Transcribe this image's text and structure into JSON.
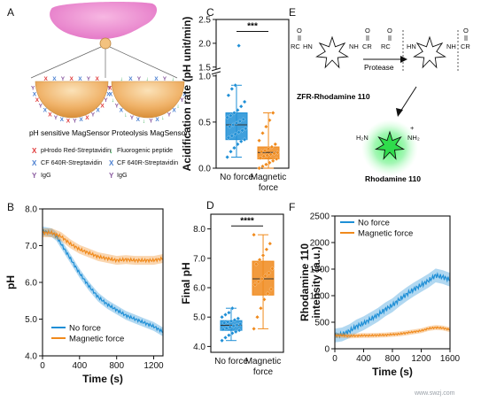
{
  "panels": {
    "A": {
      "letter": "A",
      "left_title": "pH sensitive MagSensor",
      "right_title": "Proteolysis MagSensor",
      "legend_left": [
        {
          "symbol": "X",
          "color": "#e03a3a",
          "text": "pHrodo Red-Streptavidin"
        },
        {
          "symbol": "X",
          "color": "#4a7fd0",
          "text": "CF 640R-Streptavidin"
        },
        {
          "symbol": "Y",
          "color": "#8a5aa0",
          "text": "IgG"
        }
      ],
      "legend_right": [
        {
          "symbol": "↓",
          "color": "#2aa84a",
          "text": "Fluorogenic peptide"
        },
        {
          "symbol": "X",
          "color": "#4a7fd0",
          "text": "CF 640R-Streptavidin"
        },
        {
          "symbol": "Y",
          "color": "#8a5aa0",
          "text": "IgG"
        }
      ]
    },
    "E": {
      "letter": "E",
      "left_label": "ZFR-Rhodamine 110",
      "arrow_label": "Protease",
      "product_label": "Rhodamine 110",
      "left_groups": {
        "rc": "RC",
        "hn": "HN",
        "nh": "NH",
        "cr": "CR",
        "o": "O"
      },
      "right_groups": {
        "rc": "RC",
        "hn": "HN",
        "nh": "NH",
        "cr": "CR",
        "o": "O"
      },
      "product_groups": {
        "h2n": "H₂N",
        "nh2": "NH₂",
        "plus": "+"
      }
    },
    "watermark": "www.swzj.com"
  },
  "chart_data": [
    {
      "id": "C",
      "letter": "C",
      "type": "box",
      "ylabel": "Acidification rate (pH unit/min)",
      "categories": [
        "No force",
        "Magnetic force"
      ],
      "axis_break": true,
      "yticks": [
        "0.0",
        "0.5",
        "1.0",
        "1.5",
        "2.0",
        "2.5"
      ],
      "ylim": [
        0,
        2.5
      ],
      "significance": "***",
      "colors": [
        "#1f8fd6",
        "#f08a1c"
      ],
      "boxes": [
        {
          "name": "No force",
          "q1": 0.31,
          "median": 0.47,
          "q3": 0.6,
          "mean": 0.44,
          "whisker_low": 0.12,
          "whisker_high": 0.9,
          "points": [
            0.12,
            0.18,
            0.22,
            0.26,
            0.29,
            0.31,
            0.33,
            0.35,
            0.37,
            0.39,
            0.41,
            0.43,
            0.45,
            0.47,
            0.49,
            0.51,
            0.53,
            0.55,
            0.57,
            0.6,
            0.63,
            0.67,
            0.72,
            0.79,
            0.86,
            0.9,
            1.95
          ]
        },
        {
          "name": "Magnetic force",
          "q1": 0.1,
          "median": 0.17,
          "q3": 0.23,
          "mean": 0.16,
          "whisker_low": 0.0,
          "whisker_high": 0.6,
          "points": [
            0.0,
            0.02,
            0.04,
            0.06,
            0.08,
            0.1,
            0.11,
            0.13,
            0.14,
            0.15,
            0.16,
            0.17,
            0.18,
            0.19,
            0.21,
            0.23,
            0.26,
            0.3,
            0.38,
            0.45,
            0.52,
            0.6
          ]
        }
      ]
    },
    {
      "id": "B",
      "letter": "B",
      "type": "line",
      "xlabel": "Time (s)",
      "ylabel": "pH",
      "xlim": [
        0,
        1300
      ],
      "ylim": [
        4.0,
        8.0
      ],
      "xticks": [
        "0",
        "400",
        "800",
        "1200"
      ],
      "yticks": [
        "4.0",
        "5.0",
        "6.0",
        "7.0",
        "8.0"
      ],
      "series": [
        {
          "name": "No force",
          "color": "#1f8fd6",
          "x": [
            0,
            100,
            150,
            200,
            300,
            400,
            500,
            600,
            700,
            800,
            900,
            1000,
            1100,
            1200,
            1300
          ],
          "y": [
            7.4,
            7.35,
            7.25,
            7.05,
            6.65,
            6.25,
            5.9,
            5.6,
            5.4,
            5.25,
            5.1,
            5.0,
            4.9,
            4.8,
            4.65
          ],
          "band": 0.12
        },
        {
          "name": "Magnetic force",
          "color": "#f08a1c",
          "x": [
            0,
            100,
            200,
            300,
            400,
            500,
            600,
            700,
            800,
            900,
            1000,
            1100,
            1200,
            1300
          ],
          "y": [
            7.35,
            7.35,
            7.25,
            7.05,
            6.9,
            6.8,
            6.7,
            6.65,
            6.6,
            6.62,
            6.6,
            6.6,
            6.6,
            6.65
          ],
          "band": 0.12
        }
      ]
    },
    {
      "id": "D",
      "letter": "D",
      "type": "box",
      "ylabel": "Final pH",
      "categories": [
        "No force",
        "Magnetic force"
      ],
      "ylim": [
        3.8,
        8.5
      ],
      "yticks": [
        "4.0",
        "5.0",
        "6.0",
        "7.0",
        "8.0"
      ],
      "significance": "****",
      "colors": [
        "#1f8fd6",
        "#f08a1c"
      ],
      "boxes": [
        {
          "name": "No force",
          "q1": 4.55,
          "median": 4.72,
          "q3": 4.88,
          "mean": 4.72,
          "whisker_low": 4.2,
          "whisker_high": 5.3,
          "points": [
            4.2,
            4.3,
            4.38,
            4.45,
            4.5,
            4.55,
            4.58,
            4.62,
            4.66,
            4.7,
            4.73,
            4.76,
            4.8,
            4.83,
            4.86,
            4.9,
            4.95,
            5.0,
            5.08,
            5.15,
            5.3
          ]
        },
        {
          "name": "Magnetic force",
          "q1": 5.75,
          "median": 6.3,
          "q3": 6.9,
          "mean": 6.3,
          "whisker_low": 4.6,
          "whisker_high": 7.8,
          "points": [
            4.6,
            5.0,
            5.3,
            5.6,
            5.8,
            5.95,
            6.1,
            6.2,
            6.3,
            6.4,
            6.5,
            6.65,
            6.8,
            6.95,
            7.1,
            7.3,
            7.5,
            7.8
          ]
        }
      ]
    },
    {
      "id": "F",
      "letter": "F",
      "type": "line",
      "xlabel": "Time (s)",
      "ylabel": "Rhodamine 110 intensity (a.u.)",
      "xlim": [
        0,
        1600
      ],
      "ylim": [
        0,
        2500
      ],
      "xticks": [
        "0",
        "400",
        "800",
        "1200",
        "1600"
      ],
      "yticks": [
        "0",
        "500",
        "1000",
        "1500",
        "2000",
        "2500"
      ],
      "series": [
        {
          "name": "No force",
          "color": "#1f8fd6",
          "x": [
            0,
            100,
            200,
            300,
            400,
            500,
            600,
            700,
            800,
            900,
            1000,
            1100,
            1200,
            1300,
            1400,
            1500,
            1600
          ],
          "y": [
            250,
            270,
            330,
            420,
            480,
            560,
            640,
            740,
            820,
            930,
            1030,
            1120,
            1200,
            1280,
            1380,
            1350,
            1300
          ],
          "band": 130
        },
        {
          "name": "Magnetic force",
          "color": "#f08a1c",
          "x": [
            0,
            100,
            200,
            300,
            400,
            500,
            600,
            700,
            800,
            900,
            1000,
            1100,
            1200,
            1300,
            1400,
            1500,
            1600
          ],
          "y": [
            250,
            250,
            240,
            245,
            250,
            250,
            255,
            260,
            270,
            280,
            300,
            320,
            340,
            380,
            400,
            390,
            360
          ],
          "band": 45
        }
      ]
    }
  ]
}
